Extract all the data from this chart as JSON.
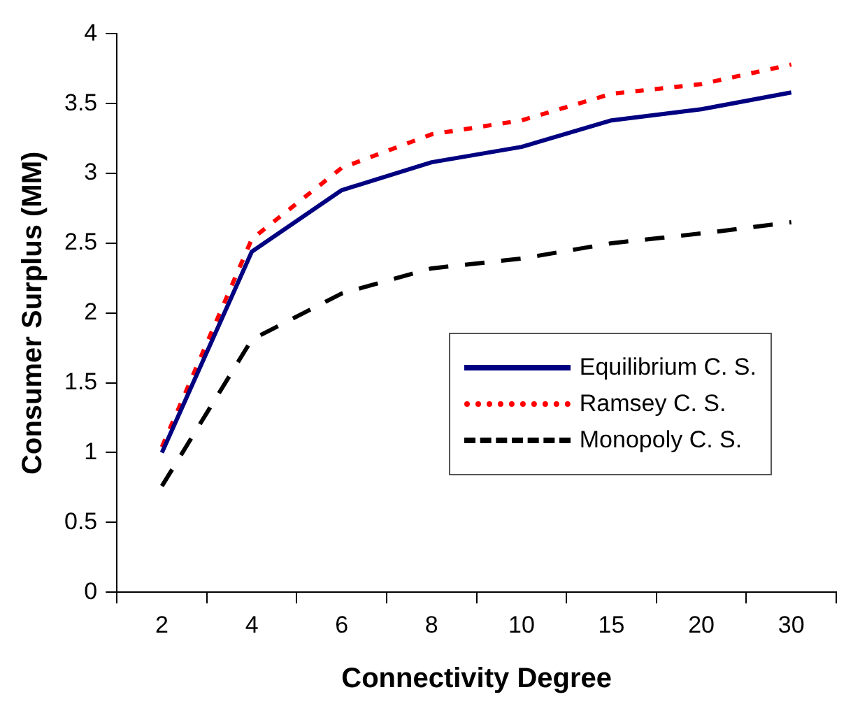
{
  "chart_data": {
    "type": "line",
    "xlabel": "Connectivity Degree",
    "ylabel": "Consumer Surplus (MM)",
    "categories": [
      "2",
      "4",
      "6",
      "8",
      "10",
      "15",
      "20",
      "30"
    ],
    "series": [
      {
        "name": "Equilibrium C. S.",
        "color": "#000080",
        "line_style": "solid",
        "values": [
          1.0,
          2.44,
          2.88,
          3.08,
          3.19,
          3.38,
          3.46,
          3.58
        ]
      },
      {
        "name": "Ramsey C. S.",
        "color": "#ff0000",
        "line_style": "dotted",
        "values": [
          1.04,
          2.53,
          3.04,
          3.28,
          3.38,
          3.57,
          3.64,
          3.78
        ]
      },
      {
        "name": "Monopoly C. S.",
        "color": "#000000",
        "line_style": "dashed",
        "values": [
          0.76,
          1.81,
          2.14,
          2.32,
          2.39,
          2.5,
          2.57,
          2.65
        ]
      }
    ],
    "ylim": [
      0,
      4
    ],
    "yticks": [
      0,
      0.5,
      1,
      1.5,
      2,
      2.5,
      3,
      3.5,
      4
    ],
    "grid": false,
    "legend": "right",
    "marker": "none"
  }
}
